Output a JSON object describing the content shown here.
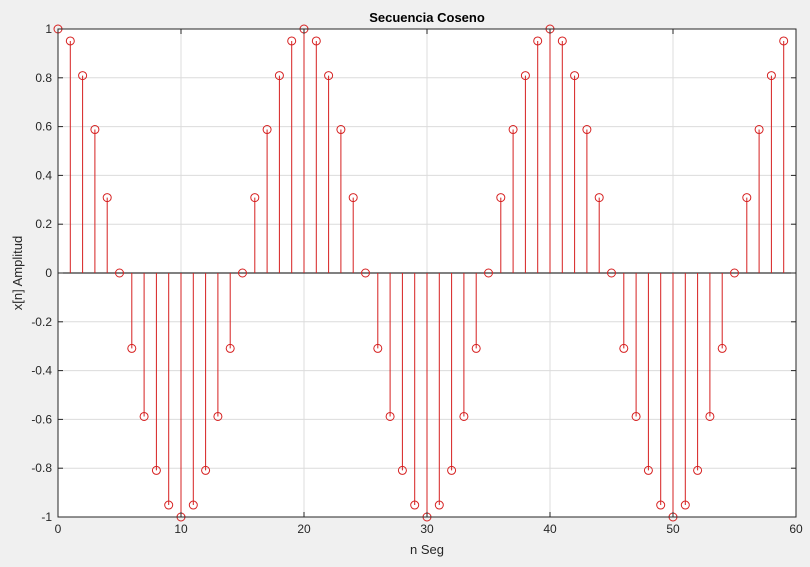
{
  "chart_data": {
    "type": "stem",
    "title": "Secuencia Coseno",
    "xlabel": "n Seg",
    "ylabel": "x[n] Amplitud",
    "xlim": [
      0,
      60
    ],
    "ylim": [
      -1,
      1
    ],
    "xticks": [
      0,
      10,
      20,
      30,
      40,
      50,
      60
    ],
    "yticks": [
      -1,
      -0.8,
      -0.6,
      -0.4,
      -0.2,
      0,
      0.2,
      0.4,
      0.6,
      0.8,
      1
    ],
    "grid": true,
    "series": [
      {
        "color": "#d62020",
        "marker": "circle-open",
        "x": [
          0,
          1,
          2,
          3,
          4,
          5,
          6,
          7,
          8,
          9,
          10,
          11,
          12,
          13,
          14,
          15,
          16,
          17,
          18,
          19,
          20,
          21,
          22,
          23,
          24,
          25,
          26,
          27,
          28,
          29,
          30,
          31,
          32,
          33,
          34,
          35,
          36,
          37,
          38,
          39,
          40,
          41,
          42,
          43,
          44,
          45,
          46,
          47,
          48,
          49,
          50,
          51,
          52,
          53,
          54,
          55,
          56,
          57,
          58,
          59
        ],
        "y": [
          1,
          0.951,
          0.809,
          0.588,
          0.309,
          0,
          -0.309,
          -0.588,
          -0.809,
          -0.951,
          -1,
          -0.951,
          -0.809,
          -0.588,
          -0.309,
          0,
          0.309,
          0.588,
          0.809,
          0.951,
          1,
          0.951,
          0.809,
          0.588,
          0.309,
          0,
          -0.309,
          -0.588,
          -0.809,
          -0.951,
          -1,
          -0.951,
          -0.809,
          -0.588,
          -0.309,
          0,
          0.309,
          0.588,
          0.809,
          0.951,
          1,
          0.951,
          0.809,
          0.588,
          0.309,
          0,
          -0.309,
          -0.588,
          -0.809,
          -0.951,
          -1,
          -0.951,
          -0.809,
          -0.588,
          -0.309,
          0,
          0.309,
          0.588,
          0.809,
          0.951
        ]
      }
    ]
  },
  "colors": {
    "stem": "#d62020",
    "grid": "#dcdcdc",
    "axes": "#262626",
    "plot_background": "#ffffff",
    "figure_background": "#f0f0f0"
  }
}
